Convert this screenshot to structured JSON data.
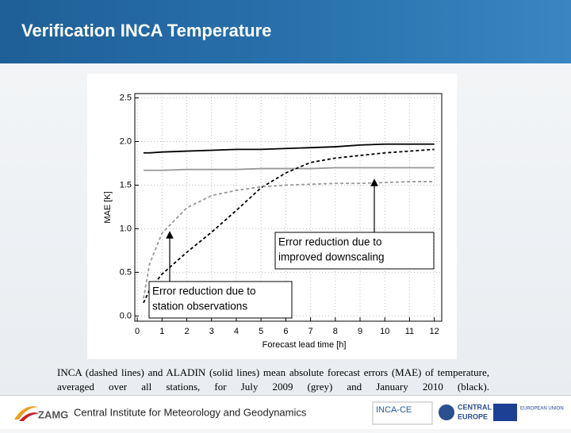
{
  "header": {
    "title": "Verification INCA Temperature"
  },
  "chart_data": {
    "type": "line",
    "xlabel": "Forecast lead time [h]",
    "ylabel": "MAE [K]",
    "xlim": [
      -0.1,
      12.3
    ],
    "ylim": [
      -0.06,
      2.55
    ],
    "xticks": [
      0,
      1,
      2,
      3,
      4,
      5,
      6,
      7,
      8,
      9,
      10,
      11,
      12
    ],
    "yticks": [
      {
        "value": 0,
        "label": "0.0"
      },
      0.5,
      {
        "value": 1,
        "label": "1.0"
      },
      1.5,
      {
        "value": 2,
        "label": "2.0"
      },
      2.5
    ],
    "grid": true,
    "x": [
      0.25,
      0.5,
      1,
      2,
      3,
      4,
      5,
      6,
      7,
      8,
      9,
      10,
      11,
      12
    ],
    "series": [
      {
        "color": "#000000",
        "linestyle": "solid",
        "values": [
          1.87,
          1.87,
          1.88,
          1.89,
          1.9,
          1.91,
          1.91,
          1.92,
          1.93,
          1.94,
          1.96,
          1.97,
          1.97,
          1.97
        ]
      },
      {
        "color": "#999999",
        "linestyle": "solid",
        "values": [
          1.67,
          1.67,
          1.67,
          1.68,
          1.68,
          1.68,
          1.69,
          1.69,
          1.69,
          1.7,
          1.7,
          1.7,
          1.7,
          1.7
        ]
      },
      {
        "color": "#000000",
        "linestyle": "dashed",
        "values": [
          0.15,
          0.3,
          0.48,
          0.73,
          0.96,
          1.21,
          1.47,
          1.64,
          1.76,
          1.81,
          1.84,
          1.87,
          1.89,
          1.91
        ]
      },
      {
        "color": "#999999",
        "linestyle": "dashed",
        "values": [
          0.2,
          0.6,
          0.95,
          1.24,
          1.38,
          1.44,
          1.48,
          1.5,
          1.51,
          1.52,
          1.52,
          1.53,
          1.54,
          1.54
        ]
      }
    ],
    "annotations": [
      [
        "Error reduction due to",
        "improved downscaling"
      ],
      [
        "Error reduction due to",
        "station observations"
      ]
    ]
  },
  "caption": "INCA (dashed lines) and ALADIN (solid lines) mean absolute forecast errors (MAE) of temperature, averaged over all stations, for July 2009 (grey) and January 2010 (black).",
  "footer": {
    "institute": "Central Institute for Meteorology and Geodynamics",
    "logo": "ZAMG",
    "project": "INCA-CE",
    "programme": [
      "CENTRAL",
      "EUROPE"
    ],
    "eu": "EUROPEAN UNION"
  }
}
